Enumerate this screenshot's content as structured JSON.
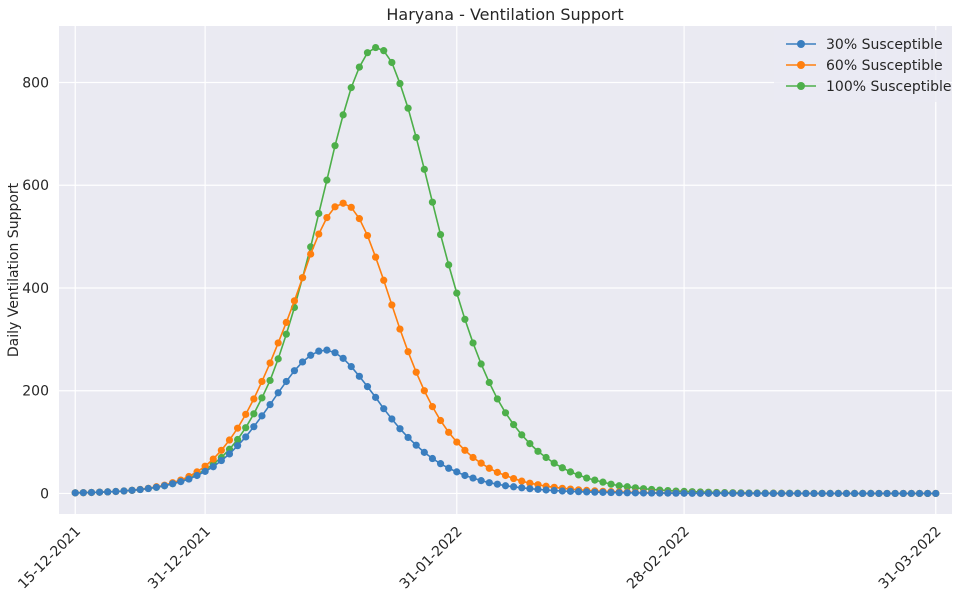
{
  "chart_data": {
    "type": "line",
    "title": "Haryana - Ventilation Support",
    "xlabel": "",
    "ylabel": "Daily Ventilation Support",
    "x_start": "2021-12-15",
    "x_tick_labels": [
      "15-12-2021",
      "31-12-2021",
      "31-01-2022",
      "28-02-2022",
      "31-03-2022"
    ],
    "x_tick_dates": [
      "2021-12-15",
      "2021-12-31",
      "2022-01-31",
      "2022-02-28",
      "2022-03-31"
    ],
    "xlim": [
      "2021-12-13",
      "2022-04-02"
    ],
    "y_ticks": [
      0,
      200,
      400,
      600,
      800
    ],
    "ylim": [
      -40,
      910
    ],
    "grid": true,
    "legend_position": "top-right",
    "marker": "circle",
    "series": [
      {
        "name": "30% Susceptible",
        "color": "#3a7ebf",
        "values": [
          1.2,
          1.5,
          1.9,
          2.4,
          3.0,
          3.8,
          4.8,
          6.1,
          7.6,
          9.6,
          12,
          15,
          19,
          23,
          28,
          35,
          43,
          52,
          64,
          77,
          93,
          110,
          130,
          151,
          173,
          196,
          218,
          239,
          256,
          269,
          277,
          279,
          274,
          263,
          247,
          228,
          208,
          187,
          165,
          145,
          126,
          109,
          94,
          80,
          68,
          58,
          49,
          42,
          35,
          30,
          25,
          21,
          18,
          15,
          13,
          11,
          9.3,
          7.9,
          6.7,
          5.7,
          4.8,
          4.1,
          3.5,
          3.0,
          2.5,
          2.1,
          1.8,
          1.5,
          1.3,
          1.1,
          0.9,
          0.8,
          0.7,
          0.6,
          0.5,
          0.4,
          0.35,
          0.3,
          0.25,
          0.2,
          0.18,
          0.15,
          0.13,
          0.11,
          0.1,
          0.08,
          0.07,
          0.06,
          0.05,
          0.04,
          0.04,
          0.03,
          0.03,
          0.02,
          0.02,
          0.02,
          0.01,
          0.01,
          0.01,
          0.01,
          0.01,
          0.01,
          0.01,
          0.01,
          0.01,
          0.01,
          0.01
        ]
      },
      {
        "name": "60% Susceptible",
        "color": "#ff7f0e",
        "values": [
          1.2,
          1.5,
          1.9,
          2.4,
          3.0,
          3.8,
          4.8,
          6.1,
          7.8,
          10,
          13,
          16,
          21,
          26,
          33,
          42,
          53,
          67,
          84,
          104,
          127,
          154,
          184,
          218,
          254,
          293,
          333,
          375,
          420,
          466,
          505,
          537,
          558,
          565,
          557,
          535,
          502,
          460,
          415,
          367,
          320,
          276,
          236,
          200,
          169,
          142,
          119,
          100,
          84,
          70,
          59,
          49,
          41,
          35,
          29,
          24,
          20,
          17,
          14,
          12,
          10,
          8.5,
          7.1,
          6.0,
          5.0,
          4.2,
          3.5,
          2.9,
          2.5,
          2.1,
          1.7,
          1.4,
          1.2,
          1.0,
          0.85,
          0.7,
          0.6,
          0.5,
          0.42,
          0.35,
          0.3,
          0.25,
          0.2,
          0.17,
          0.14,
          0.12,
          0.1,
          0.08,
          0.07,
          0.06,
          0.05,
          0.04,
          0.03,
          0.03,
          0.02,
          0.02,
          0.02,
          0.01,
          0.01,
          0.01,
          0.01,
          0.01,
          0.01,
          0.01,
          0.01,
          0.01,
          0.01
        ]
      },
      {
        "name": "100% Susceptible",
        "color": "#4daf4a",
        "values": [
          1.2,
          1.5,
          1.9,
          2.4,
          3.0,
          3.8,
          4.8,
          6.1,
          7.7,
          9.8,
          12,
          15,
          19,
          24,
          30,
          37,
          46,
          57,
          70,
          86,
          105,
          128,
          155,
          186,
          220,
          262,
          310,
          362,
          420,
          480,
          545,
          610,
          677,
          737,
          790,
          830,
          858,
          868,
          862,
          839,
          798,
          750,
          693,
          631,
          567,
          504,
          445,
          390,
          339,
          293,
          252,
          216,
          184,
          157,
          134,
          114,
          97,
          82,
          70,
          59,
          50,
          42,
          36,
          30,
          26,
          22,
          18,
          15,
          13,
          11,
          9.2,
          7.8,
          6.6,
          5.6,
          4.7,
          4.0,
          3.4,
          2.9,
          2.4,
          2.0,
          1.7,
          1.4,
          1.2,
          1.0,
          0.85,
          0.72,
          0.6,
          0.5,
          0.43,
          0.36,
          0.3,
          0.26,
          0.22,
          0.18,
          0.15,
          0.13,
          0.11,
          0.09,
          0.08,
          0.07,
          0.06,
          0.05,
          0.04,
          0.03,
          0.03,
          0.02,
          0.02
        ]
      }
    ]
  }
}
